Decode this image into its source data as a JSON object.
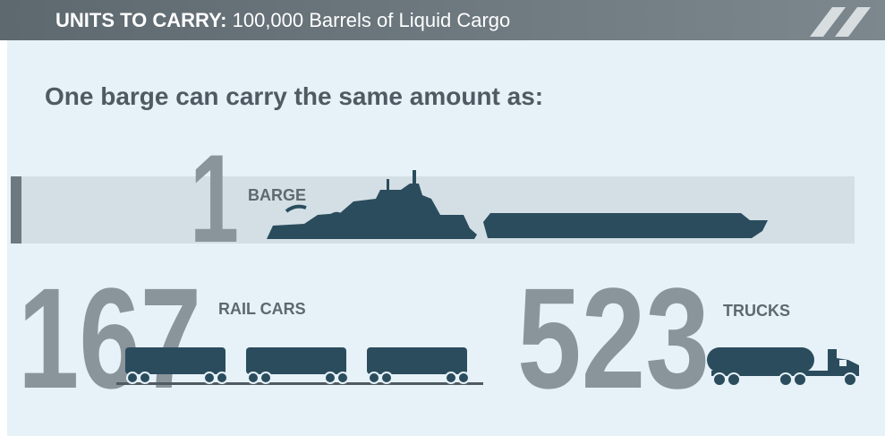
{
  "header": {
    "label": "UNITS TO CARRY:",
    "text": "100,000 Barrels of Liquid Cargo"
  },
  "heading": "One barge can carry the same amount as:",
  "items": [
    {
      "number": 1,
      "label": "BARGE"
    },
    {
      "number": 167,
      "label": "RAIL CARS"
    },
    {
      "number": 523,
      "label": "TRUCKS"
    }
  ]
}
